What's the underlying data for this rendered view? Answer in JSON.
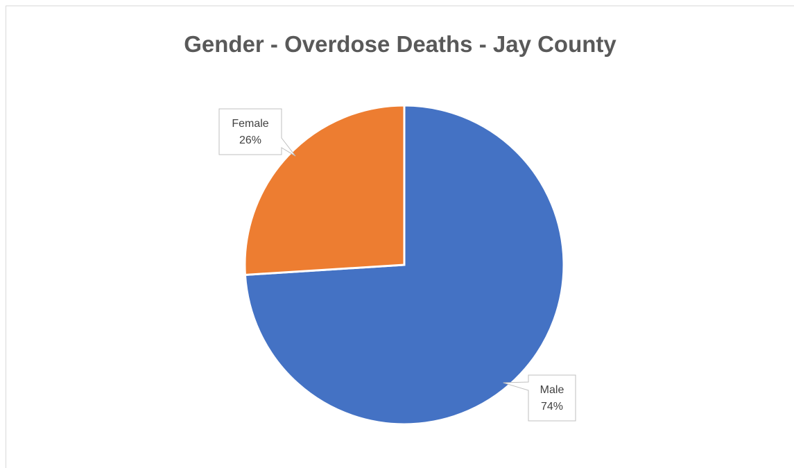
{
  "chart_data": {
    "type": "pie",
    "title": "Gender - Overdose Deaths - Jay County",
    "slices": [
      {
        "label": "Male",
        "percent_label": "74%",
        "value": 74,
        "color": "#4472C4"
      },
      {
        "label": "Female",
        "percent_label": "26%",
        "value": 26,
        "color": "#ED7D31"
      }
    ],
    "legend": "none",
    "data_labels": "callouts"
  }
}
